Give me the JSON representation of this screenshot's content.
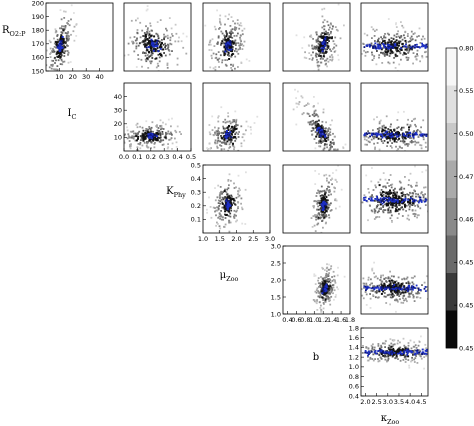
{
  "chart_data": {
    "type": "scatter",
    "layout": "upper-triangular scatter-plot matrix",
    "parameters": [
      {
        "id": "R",
        "label": "R",
        "subscript": "O2:P"
      },
      {
        "id": "IC",
        "label": "I",
        "subscript": "C"
      },
      {
        "id": "KPhy",
        "label": "K",
        "subscript": "Phy"
      },
      {
        "id": "muZoo",
        "label": "μ",
        "subscript": "Zoo"
      },
      {
        "id": "b",
        "label": "b",
        "subscript": ""
      },
      {
        "id": "kZoo",
        "label": "κ",
        "subscript": "Zoo"
      }
    ],
    "panels": [
      {
        "row": 0,
        "col": 0,
        "x_param": "IC",
        "y_param": "R",
        "x_range": [
          0,
          50
        ],
        "y_range": [
          150,
          200
        ],
        "x_ticks": [
          "10",
          "20",
          "30",
          "40"
        ],
        "y_ticks": [
          "150",
          "160",
          "170",
          "180",
          "190",
          "200"
        ],
        "cloud": {
          "cx": 11,
          "cy": 168,
          "sx": 4,
          "sy": 10,
          "rho": 0.5,
          "n": 170
        }
      },
      {
        "row": 0,
        "col": 1,
        "x_range": [
          0,
          0.5
        ],
        "y_range": [
          150,
          200
        ],
        "cloud": {
          "cx": 0.22,
          "cy": 169,
          "sx": 0.09,
          "sy": 8,
          "rho": -0.2,
          "n": 200
        }
      },
      {
        "row": 0,
        "col": 2,
        "x_range": [
          1,
          3
        ],
        "y_range": [
          150,
          200
        ],
        "cloud": {
          "cx": 1.75,
          "cy": 169,
          "sx": 0.22,
          "sy": 9,
          "rho": 0.1,
          "n": 180
        }
      },
      {
        "row": 0,
        "col": 3,
        "x_range": [
          0.4,
          1.8
        ],
        "y_range": [
          150,
          200
        ],
        "cloud": {
          "cx": 1.25,
          "cy": 170,
          "sx": 0.14,
          "sy": 9,
          "rho": 0.4,
          "n": 180
        }
      },
      {
        "row": 0,
        "col": 4,
        "x_range": [
          1.8,
          4.8
        ],
        "y_range": [
          150,
          200
        ],
        "cloud": {
          "cx": 3.3,
          "cy": 168,
          "sx": 0.75,
          "sy": 6,
          "rho": 0.0,
          "n": 230
        },
        "band": true
      },
      {
        "row": 1,
        "col": 1,
        "x_param": "KPhy",
        "y_param": "IC",
        "x_range": [
          0,
          0.5
        ],
        "y_range": [
          0,
          50
        ],
        "x_ticks": [
          "0.0",
          "0.1",
          "0.2",
          "0.3",
          "0.4",
          "0.5"
        ],
        "y_ticks": [
          "10",
          "20",
          "30",
          "40"
        ],
        "cloud": {
          "cx": 0.2,
          "cy": 11,
          "sx": 0.09,
          "sy": 4,
          "rho": 0.2,
          "n": 200
        }
      },
      {
        "row": 1,
        "col": 2,
        "x_range": [
          1,
          3
        ],
        "y_range": [
          0,
          50
        ],
        "cloud": {
          "cx": 1.75,
          "cy": 12,
          "sx": 0.22,
          "sy": 6,
          "rho": 0.2,
          "n": 170
        }
      },
      {
        "row": 1,
        "col": 3,
        "x_range": [
          0.4,
          1.8
        ],
        "y_range": [
          0,
          50
        ],
        "cloud": {
          "cx": 1.2,
          "cy": 14,
          "sx": 0.18,
          "sy": 9,
          "rho": -0.75,
          "n": 170
        }
      },
      {
        "row": 1,
        "col": 4,
        "x_range": [
          1.8,
          4.8
        ],
        "y_range": [
          0,
          50
        ],
        "cloud": {
          "cx": 3.3,
          "cy": 12,
          "sx": 0.75,
          "sy": 5,
          "rho": 0.0,
          "n": 210
        },
        "band": true
      },
      {
        "row": 2,
        "col": 2,
        "x_param": "muZoo",
        "y_param": "KPhy",
        "x_range": [
          1,
          3
        ],
        "y_range": [
          0,
          0.5
        ],
        "x_ticks": [
          "1.0",
          "1.5",
          "2.0",
          "2.5",
          "3.0"
        ],
        "y_ticks": [
          "0.1",
          "0.2",
          "0.3",
          "0.4",
          "0.5"
        ],
        "cloud": {
          "cx": 1.75,
          "cy": 0.21,
          "sx": 0.18,
          "sy": 0.08,
          "rho": 0.2,
          "n": 170
        }
      },
      {
        "row": 2,
        "col": 3,
        "x_range": [
          0.4,
          1.8
        ],
        "y_range": [
          0,
          0.5
        ],
        "cloud": {
          "cx": 1.25,
          "cy": 0.21,
          "sx": 0.1,
          "sy": 0.09,
          "rho": 0.3,
          "n": 170
        }
      },
      {
        "row": 2,
        "col": 4,
        "x_range": [
          1.8,
          4.8
        ],
        "y_range": [
          0,
          0.5
        ],
        "cloud": {
          "cx": 3.3,
          "cy": 0.24,
          "sx": 0.75,
          "sy": 0.07,
          "rho": 0.0,
          "n": 260
        },
        "band": true
      },
      {
        "row": 3,
        "col": 3,
        "x_param": "b",
        "y_param": "muZoo",
        "x_range": [
          0.3,
          1.8
        ],
        "y_range": [
          1,
          3
        ],
        "x_ticks": [
          "0.4",
          "0.6",
          "0.8",
          "1.0",
          "1.2",
          "1.4",
          "1.6",
          "1.8"
        ],
        "y_ticks": [
          "1.0",
          "1.5",
          "2.0",
          "2.5",
          "3.0"
        ],
        "cloud": {
          "cx": 1.25,
          "cy": 1.75,
          "sx": 0.1,
          "sy": 0.25,
          "rho": 0.3,
          "n": 180
        }
      },
      {
        "row": 3,
        "col": 4,
        "x_range": [
          1.8,
          4.8
        ],
        "y_range": [
          1,
          3
        ],
        "cloud": {
          "cx": 3.3,
          "cy": 1.75,
          "sx": 0.75,
          "sy": 0.2,
          "rho": 0.0,
          "n": 230
        },
        "band": true
      },
      {
        "row": 4,
        "col": 4,
        "x_param": "kZoo",
        "y_param": "b",
        "x_range": [
          1.8,
          4.8
        ],
        "y_range": [
          0.4,
          1.8
        ],
        "x_ticks": [
          "2.0",
          "2.5",
          "3.0",
          "3.5",
          "4.0",
          "4.5"
        ],
        "y_ticks": [
          "0.4",
          "0.6",
          "0.8",
          "1.0",
          "1.2",
          "1.4",
          "1.6",
          "1.8"
        ],
        "cloud": {
          "cx": 3.3,
          "cy": 1.3,
          "sx": 0.75,
          "sy": 0.1,
          "rho": 0.0,
          "n": 230
        },
        "band": true
      }
    ],
    "colorbar": {
      "ticks": [
        "0.800",
        "0.550",
        "0.500",
        "0.470",
        "0.460",
        "0.455",
        "0.452",
        "0.450"
      ],
      "colors": [
        "#f7f7f7",
        "#e0e0e0",
        "#c8c8c8",
        "#aaaaaa",
        "#8a8a8a",
        "#6a6a6a",
        "#3a3a3a",
        "#0a0a0a"
      ]
    },
    "highlight_colors": {
      "best_fit": "#1c2ec4",
      "best_fit_dark": "#0b1476"
    },
    "grid": false,
    "legend": "colorbar-right"
  }
}
